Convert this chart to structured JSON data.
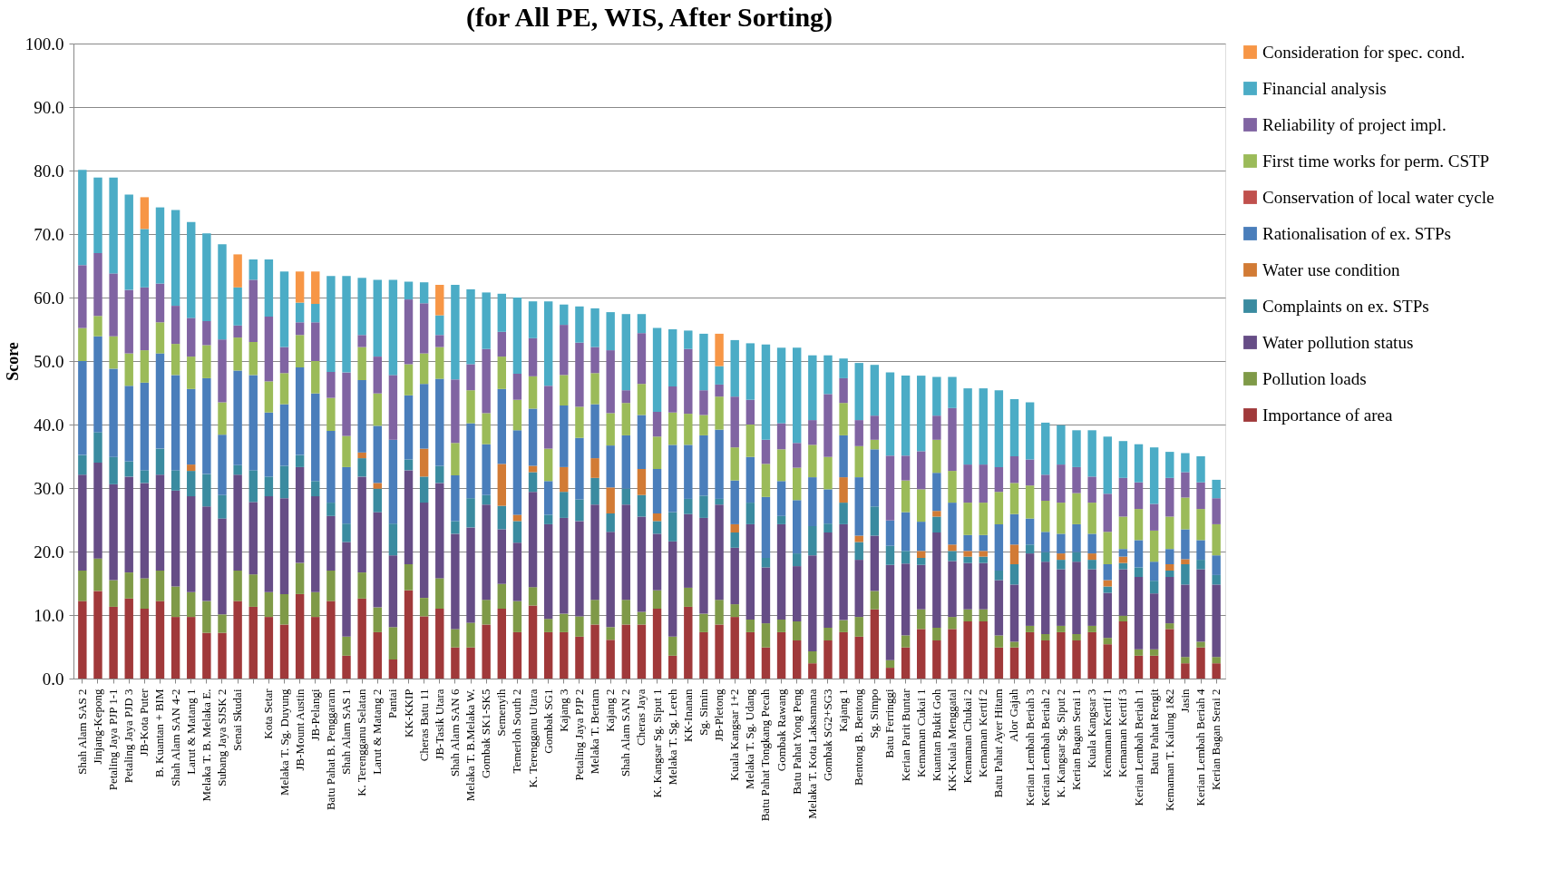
{
  "chart_data": {
    "type": "bar",
    "stacked": true,
    "title": "(for All PE, WIS, After Sorting)",
    "ylabel": "Score",
    "ylim": [
      0,
      100
    ],
    "yticks": [
      {
        "value": 0,
        "label": "0.0"
      },
      {
        "value": 10,
        "label": "10.0"
      },
      {
        "value": 20,
        "label": "20.0"
      },
      {
        "value": 30,
        "label": "30.0"
      },
      {
        "value": 40,
        "label": "40.0"
      },
      {
        "value": 50,
        "label": "50.0"
      },
      {
        "value": 60,
        "label": "60.0"
      },
      {
        "value": 70,
        "label": "70.0"
      },
      {
        "value": 80,
        "label": "80.0"
      },
      {
        "value": 90,
        "label": "90.0"
      },
      {
        "value": 100,
        "label": "100.0"
      }
    ],
    "grid": "y",
    "legend": "right",
    "categories": [
      "Shah Alam SAS 2",
      "Jinjang-Kepong",
      "Petaling Jaya PJP 1-1",
      "Petaling Jaya PJD 3",
      "JB-Kota Puter",
      "B. Kuantan + BIM",
      "Shah Alam SAN 4-2",
      "Larut & Matang 1",
      "Melaka T. B. Melaka E.",
      "Subang Jaya SJSK 2",
      "Senai Skudai",
      null,
      "Kota Setar",
      "Melaka T. Sg. Duyung",
      "JB-Mount Austin",
      "JB-Pelangi",
      "Batu Pahat B. Penggaram",
      "Shah Alam SAS 1",
      "K. Terengganu Selatan",
      "Larut & Matang 2",
      "Pantai",
      "KK-KKIP",
      "Cheras Batu 11",
      "JB-Tasik Utara",
      "Shah Alam SAN 6",
      "Melaka T. B.Melaka W.",
      "Gombak SK1-SK5",
      "Semenyih",
      "Temerloh South 2",
      "K. Terengganu Utara",
      "Gombak SG1",
      "Kajang 3",
      "Petaling Jaya PJP 2",
      "Melaka T. Bertam",
      "Kajang 2",
      "Shah Alam SAN 2",
      "Cheras Jaya",
      "K. Kangsar Sg. Siput 1",
      "Melaka T. Sg. Lereh",
      "KK-Inanan",
      "Sg. Simin",
      "JB-Pletong",
      "Kuala Kangsar 1+2",
      "Melaka T. Sg. Udang",
      "Batu Pahat Tongkang Pecah",
      "Gombak Rawang",
      "Batu Pahat Yong Peng",
      "Melaka T. Kota Laksamana",
      "Gombak SG2+SG3",
      "Kajang 1",
      "Bentong B. Bentong",
      "Sg. Simpo",
      "Batu Ferringgi",
      "Kerian Parit Buntar",
      "Kemaman Cukai 1",
      "Kuantan Bukit Goh",
      "KK-Kuala Menggatal",
      "Kemaman Chukai 2",
      "Kemaman Kertif 2",
      "Batu Pahat Ayer Hitam",
      "Alor Gajah",
      "Kerian Lembah Beriah 3",
      "Kerian Lembah Beriah 2",
      "K. Kangsar Sg. Siput 2",
      "Kerian Bagan Serai 1",
      "Kuala Kangsar 3",
      "Kemaman Kertif 1",
      "Kemaman Kertif 3",
      "Kerian Lembah Beriah 1",
      "Batu Pahat Rengit",
      "Kemaman T. Kalung 1&2",
      "Jasin",
      "Kerian Lembah Beriah 4",
      "Kerian Bagan Serai 2"
    ],
    "series": [
      {
        "name": "Importance of area",
        "color": "#a0393a",
        "values": [
          12.2,
          13.8,
          11.3,
          12.6,
          11.0,
          12.2,
          9.7,
          9.7,
          7.2,
          7.2,
          12.2,
          11.3,
          9.7,
          8.5,
          13.3,
          9.7,
          12.2,
          3.6,
          12.6,
          7.3,
          3.0,
          13.9,
          9.8,
          11.0,
          4.9,
          4.9,
          8.5,
          11.0,
          7.3,
          11.5,
          7.3,
          7.3,
          6.6,
          8.5,
          6.1,
          8.5,
          8.5,
          11.0,
          3.6,
          11.3,
          7.3,
          8.5,
          9.7,
          7.3,
          4.9,
          7.3,
          6.0,
          2.4,
          6.0,
          7.3,
          6.6,
          10.9,
          1.7,
          4.9,
          7.8,
          6.0,
          7.8,
          9.0,
          9.0,
          4.9,
          4.9,
          7.3,
          6.0,
          7.3,
          6.0,
          7.3,
          5.4,
          9.0,
          3.6,
          3.6,
          7.8,
          2.4,
          4.9,
          2.4
        ]
      },
      {
        "name": "Pollution loads",
        "color": "#7f9a48",
        "values": [
          4.8,
          5.1,
          4.2,
          4.1,
          4.8,
          4.8,
          4.8,
          3.9,
          5.0,
          2.9,
          4.8,
          5.1,
          3.9,
          4.8,
          4.9,
          3.9,
          4.8,
          3.0,
          4.1,
          3.9,
          5.1,
          4.1,
          2.9,
          4.8,
          2.9,
          3.9,
          3.9,
          3.9,
          4.9,
          2.9,
          2.1,
          2.9,
          3.2,
          3.9,
          2.0,
          3.9,
          2.0,
          2.9,
          3.0,
          3.0,
          2.9,
          3.9,
          2.0,
          2.0,
          3.8,
          2.0,
          3.0,
          1.9,
          2.0,
          1.9,
          3.1,
          2.9,
          1.2,
          1.9,
          3.1,
          2.0,
          1.9,
          1.9,
          1.9,
          1.9,
          0.9,
          1.0,
          1.0,
          1.0,
          1.0,
          1.0,
          1.0,
          0.9,
          1.0,
          1.0,
          0.9,
          1.0,
          0.9,
          1.0
        ]
      },
      {
        "name": "Water pollution status",
        "color": "#664d86",
        "values": [
          15.1,
          15.1,
          15.1,
          15.1,
          15.0,
          15.1,
          15.1,
          15.1,
          14.9,
          15.1,
          15.1,
          11.4,
          15.1,
          15.1,
          15.1,
          15.1,
          8.6,
          14.9,
          15.1,
          15.0,
          11.3,
          14.8,
          15.0,
          15.0,
          15.0,
          15.0,
          15.0,
          8.6,
          9.2,
          15.0,
          14.9,
          15.1,
          15.0,
          15.0,
          15.0,
          15.0,
          15.0,
          8.9,
          15.0,
          11.6,
          15.1,
          15.0,
          8.9,
          15.0,
          8.8,
          15.0,
          8.7,
          15.1,
          15.0,
          15.1,
          9.0,
          8.7,
          15.0,
          11.3,
          7.0,
          15.0,
          8.8,
          7.3,
          7.3,
          8.7,
          9.0,
          11.4,
          11.4,
          8.9,
          11.4,
          8.9,
          7.1,
          7.3,
          11.4,
          8.8,
          7.3,
          11.4,
          11.4,
          11.4
        ]
      },
      {
        "name": "Complaints on ex. STPs",
        "color": "#3a8ba0",
        "values": [
          3.1,
          4.8,
          4.3,
          2.4,
          2.0,
          4.1,
          3.2,
          4.0,
          5.1,
          3.7,
          1.5,
          5.0,
          3.1,
          5.1,
          1.9,
          2.4,
          2.1,
          2.9,
          2.9,
          3.7,
          5.0,
          1.7,
          4.1,
          2.7,
          2.0,
          4.6,
          1.5,
          3.7,
          3.4,
          3.1,
          1.5,
          4.1,
          3.4,
          4.2,
          2.9,
          2.5,
          3.4,
          2.0,
          4.6,
          2.4,
          3.5,
          0.9,
          2.4,
          3.4,
          1.5,
          1.3,
          2.0,
          4.6,
          1.4,
          3.4,
          2.8,
          4.6,
          3.0,
          2.0,
          1.1,
          2.5,
          1.6,
          1.0,
          1.0,
          1.5,
          3.2,
          1.4,
          1.5,
          1.5,
          1.5,
          1.5,
          1.0,
          1.0,
          1.5,
          2.0,
          1.0,
          3.2,
          1.5,
          1.5
        ]
      },
      {
        "name": "Water use condition",
        "color": "#d27b35",
        "values": [
          0,
          0,
          0,
          0,
          0,
          0,
          0,
          1.0,
          0,
          0,
          0,
          0,
          0,
          0,
          0,
          0,
          0,
          0,
          0.9,
          0.9,
          0,
          0,
          4.4,
          0,
          0,
          0,
          0,
          6.6,
          1.0,
          1.0,
          0,
          3.9,
          0,
          3.1,
          4.1,
          0,
          4.1,
          1.2,
          0,
          0,
          0,
          0,
          1.3,
          0,
          0,
          0,
          0,
          0,
          0,
          4.0,
          1.0,
          0,
          0,
          0,
          1.1,
          0.9,
          1.0,
          0.9,
          0.9,
          0,
          3.1,
          0,
          0,
          1.0,
          0,
          1.0,
          1.0,
          1.0,
          0,
          0,
          1.0,
          0.8,
          0,
          0
        ]
      },
      {
        "name": "Rationalisation of ex. STPs",
        "color": "#4a7ebb",
        "values": [
          14.8,
          15.1,
          13.9,
          11.9,
          13.8,
          15.0,
          15.0,
          11.9,
          15.1,
          9.5,
          14.9,
          15.0,
          10.1,
          9.7,
          13.8,
          13.8,
          11.3,
          8.9,
          11.4,
          9.0,
          13.2,
          10.1,
          10.2,
          13.7,
          7.2,
          11.8,
          8.0,
          11.8,
          13.3,
          9.0,
          5.3,
          9.7,
          9.7,
          8.5,
          6.6,
          8.4,
          8.5,
          7.0,
          10.6,
          8.5,
          9.5,
          10.9,
          6.9,
          7.2,
          9.6,
          5.5,
          8.4,
          7.7,
          5.4,
          6.6,
          9.2,
          9.0,
          4.0,
          6.1,
          4.6,
          6.0,
          6.6,
          2.5,
          2.5,
          7.3,
          4.8,
          4.1,
          3.2,
          3.1,
          4.4,
          3.1,
          2.5,
          1.2,
          4.3,
          3.0,
          2.4,
          4.7,
          3.1,
          3.1
        ]
      },
      {
        "name": "Conservation of local water cycle",
        "color": "#c0504d",
        "values": [
          0,
          0,
          0,
          0,
          0,
          0,
          0,
          0,
          0,
          0,
          0,
          0,
          0,
          0,
          0,
          0,
          0,
          0,
          0,
          0,
          0,
          0,
          0,
          0,
          0,
          0,
          0,
          0,
          0,
          0,
          0,
          0,
          0,
          0,
          0,
          0,
          0,
          0,
          0,
          0,
          0,
          0,
          0,
          0,
          0,
          0,
          0,
          0,
          0,
          0,
          0,
          0,
          0,
          0,
          0,
          0,
          0,
          0,
          0,
          0,
          0,
          0,
          0,
          0,
          0,
          0,
          0,
          0,
          0,
          0,
          0,
          0,
          0,
          0
        ]
      },
      {
        "name": "First time works for perm. CSTP",
        "color": "#9bbb59",
        "values": [
          5.2,
          3.2,
          5.1,
          5.1,
          5.1,
          4.9,
          4.9,
          5.1,
          5.2,
          5.1,
          5.2,
          5.2,
          4.9,
          4.9,
          5.1,
          5.1,
          5.2,
          4.9,
          5.2,
          5.1,
          0,
          4.9,
          4.8,
          5.0,
          5.1,
          5.2,
          4.9,
          5.1,
          4.8,
          5.1,
          5.1,
          4.8,
          4.9,
          4.9,
          5.1,
          5.1,
          4.9,
          5.1,
          5.1,
          4.9,
          3.2,
          5.2,
          5.2,
          5.1,
          5.2,
          5.0,
          5.1,
          5.1,
          5.1,
          5.1,
          4.9,
          1.5,
          0,
          5.0,
          5.1,
          5.2,
          5.0,
          5.1,
          5.1,
          5.1,
          4.9,
          5.2,
          4.9,
          4.9,
          4.9,
          4.9,
          5.1,
          5.1,
          4.9,
          4.9,
          5.1,
          5.0,
          4.9,
          4.9
        ]
      },
      {
        "name": "Reliability of project impl.",
        "color": "#8064a2",
        "values": [
          9.9,
          9.9,
          9.9,
          10.0,
          9.9,
          6.1,
          6.0,
          6.1,
          3.8,
          9.9,
          1.9,
          9.8,
          10.2,
          4.1,
          2.0,
          6.1,
          4.1,
          10.0,
          1.9,
          5.8,
          10.2,
          10.2,
          7.9,
          1.9,
          10.0,
          4.1,
          10.1,
          3.9,
          4.1,
          6.0,
          9.9,
          7.9,
          10.1,
          4.1,
          9.9,
          2.0,
          8.0,
          3.9,
          4.1,
          10.2,
          3.9,
          1.9,
          8.0,
          3.9,
          3.8,
          4.1,
          3.9,
          3.9,
          9.9,
          3.9,
          4.1,
          3.8,
          10.2,
          3.9,
          6.0,
          3.8,
          9.9,
          6.0,
          6.0,
          3.9,
          4.2,
          4.1,
          4.1,
          6.0,
          4.1,
          4.1,
          6.0,
          6.1,
          4.2,
          4.2,
          6.1,
          4.0,
          4.2,
          4.1
        ]
      },
      {
        "name": "Financial analysis",
        "color": "#4bacc6",
        "values": [
          15.0,
          11.9,
          15.1,
          15.0,
          9.2,
          12.0,
          15.1,
          15.1,
          13.8,
          15.0,
          6.0,
          3.2,
          9.0,
          11.9,
          3.1,
          2.9,
          15.1,
          15.2,
          9.0,
          12.1,
          15.0,
          2.8,
          3.3,
          3.1,
          14.9,
          11.8,
          8.9,
          6.0,
          12.0,
          5.8,
          13.3,
          3.2,
          5.7,
          6.1,
          6.0,
          12.0,
          3.0,
          13.2,
          9.0,
          2.9,
          8.9,
          2.9,
          8.9,
          8.9,
          15.0,
          11.9,
          15.0,
          10.2,
          6.1,
          3.1,
          9.0,
          8.0,
          13.1,
          12.6,
          11.9,
          6.1,
          4.9,
          12.0,
          12.0,
          12.1,
          9.0,
          9.0,
          8.2,
          6.2,
          5.8,
          7.3,
          9.0,
          5.8,
          6.0,
          8.9,
          4.1,
          3.0,
          4.1,
          2.9
        ]
      },
      {
        "name": "Consideration for spec. cond.",
        "color": "#f79646",
        "values": [
          0,
          0,
          0,
          0,
          5.0,
          0,
          0,
          0,
          0,
          0,
          5.2,
          0,
          0,
          0,
          4.9,
          5.1,
          0,
          0,
          0,
          0,
          0,
          0,
          0,
          4.8,
          0,
          0,
          0,
          0,
          0,
          0,
          0,
          0,
          0,
          0,
          0,
          0,
          0,
          0,
          0,
          0,
          0,
          5.1,
          0,
          0,
          0,
          0,
          0,
          0,
          0,
          0,
          0,
          0,
          0,
          0,
          0,
          0,
          0,
          0,
          0,
          0,
          0,
          0,
          0,
          0,
          0,
          0,
          0,
          0,
          0,
          0,
          0,
          0,
          0,
          0
        ]
      }
    ]
  }
}
